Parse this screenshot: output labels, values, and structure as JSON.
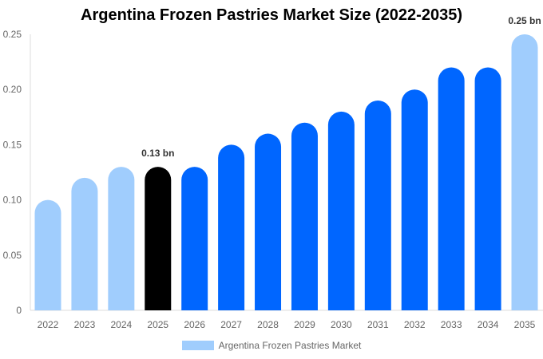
{
  "chart_data": {
    "type": "bar",
    "title": "Argentina Frozen Pastries Market Size (2022-2035)",
    "categories": [
      "2022",
      "2023",
      "2024",
      "2025",
      "2026",
      "2027",
      "2028",
      "2029",
      "2030",
      "2031",
      "2032",
      "2033",
      "2034",
      "2035"
    ],
    "series": [
      {
        "name": "Argentina Frozen Pastries Market",
        "values": [
          0.1,
          0.12,
          0.13,
          0.13,
          0.13,
          0.15,
          0.16,
          0.17,
          0.18,
          0.19,
          0.2,
          0.22,
          0.22,
          0.25
        ]
      }
    ],
    "ylim": [
      0,
      0.25
    ],
    "yticks": [
      "0",
      "0.05",
      "0.10",
      "0.15",
      "0.20",
      "0.25"
    ],
    "data_labels": {
      "2025": "0.13 bn",
      "2035": "0.25 bn"
    },
    "bar_colors": [
      "#a0cdfd",
      "#a0cdfd",
      "#a0cdfd",
      "#000000",
      "#0066ff",
      "#0066ff",
      "#0066ff",
      "#0066ff",
      "#0066ff",
      "#0066ff",
      "#0066ff",
      "#0066ff",
      "#0066ff",
      "#a0cdfd"
    ],
    "legend_position": "bottom",
    "grid": false
  }
}
